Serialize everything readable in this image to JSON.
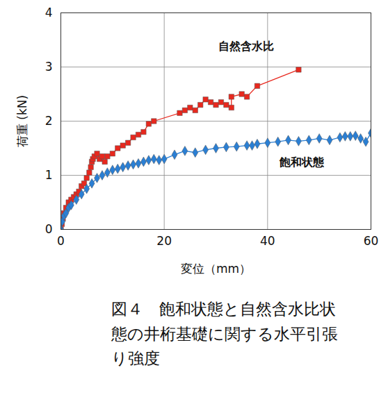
{
  "chart_data": {
    "type": "line",
    "title": "図４　飽和状態と自然含水比状態の井桁基礎に関する水平引張り強度",
    "x_label": "変位（mm）",
    "y_label": "荷重 (kN)",
    "xlim": [
      0,
      60
    ],
    "xticks": [
      0,
      20,
      40,
      60
    ],
    "ylim": [
      0,
      4
    ],
    "yticks": [
      0,
      1,
      2,
      3,
      4
    ],
    "grid": true,
    "series": [
      {
        "name": "自然含水比",
        "color": "#e8281e",
        "marker": "square",
        "line_style": "solid",
        "x": [
          0,
          0.2,
          0.4,
          0.6,
          1,
          1.5,
          2,
          2.5,
          3,
          3.5,
          4,
          4.5,
          5,
          5.5,
          5.8,
          6,
          6.2,
          6.5,
          7,
          7.5,
          8,
          8.5,
          9,
          10,
          11,
          12,
          13,
          14,
          15,
          16,
          17,
          18,
          23,
          24,
          25,
          26,
          27,
          28,
          29,
          30,
          31,
          32,
          33,
          33,
          35,
          36,
          38,
          46
        ],
        "values": [
          0,
          0.1,
          0.2,
          0.3,
          0.4,
          0.5,
          0.55,
          0.6,
          0.65,
          0.7,
          0.8,
          0.85,
          0.95,
          1.05,
          1.15,
          1.25,
          1.3,
          1.35,
          1.4,
          1.3,
          1.35,
          1.25,
          1.35,
          1.4,
          1.5,
          1.55,
          1.6,
          1.7,
          1.75,
          1.8,
          1.95,
          2.0,
          2.15,
          2.2,
          2.25,
          2.2,
          2.3,
          2.4,
          2.35,
          2.3,
          2.35,
          2.3,
          2.25,
          2.45,
          2.5,
          2.45,
          2.65,
          2.95
        ]
      },
      {
        "name": "飽和状態",
        "color": "#2a7fd4",
        "marker": "diamond",
        "line_style": "solid",
        "x": [
          0,
          0.3,
          0.6,
          1,
          1.5,
          2,
          3,
          4,
          5,
          6,
          7,
          8,
          9,
          10,
          11,
          12,
          13,
          14,
          15,
          16,
          17,
          18,
          19,
          20,
          22,
          24,
          26,
          28,
          30,
          32,
          34,
          36,
          37,
          38,
          40,
          42,
          44,
          46,
          48,
          50,
          52,
          54,
          55,
          56,
          57,
          58,
          59,
          60
        ],
        "values": [
          0,
          0.15,
          0.25,
          0.3,
          0.4,
          0.45,
          0.55,
          0.65,
          0.75,
          0.85,
          0.95,
          1.0,
          1.05,
          1.1,
          1.12,
          1.15,
          1.18,
          1.2,
          1.22,
          1.25,
          1.28,
          1.3,
          1.28,
          1.3,
          1.38,
          1.45,
          1.42,
          1.47,
          1.5,
          1.52,
          1.53,
          1.55,
          1.55,
          1.58,
          1.6,
          1.62,
          1.65,
          1.63,
          1.65,
          1.68,
          1.65,
          1.7,
          1.72,
          1.72,
          1.73,
          1.68,
          1.62,
          1.78
        ]
      }
    ]
  }
}
